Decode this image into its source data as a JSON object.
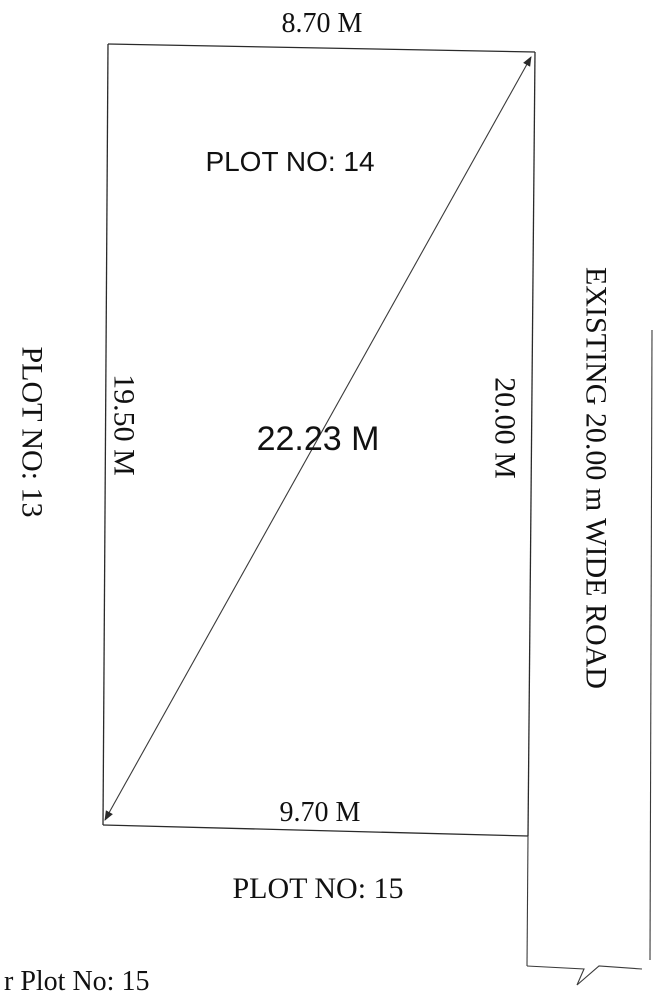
{
  "plan": {
    "top_dimension": "8.70 M",
    "bottom_dimension": "9.70 M",
    "left_dimension": "19.50 M",
    "right_dimension": "20.00 M",
    "diagonal_dimension": "22.23 M",
    "plot_main": "PLOT NO: 14",
    "plot_left": "PLOT NO: 13",
    "plot_bottom": "PLOT NO: 15",
    "road_label": "EXISTING 20.00 m WIDE ROAD",
    "footer_text": "r  Plot No: 15"
  },
  "colors": {
    "ink": "#111111",
    "lines": "#2a2a2a",
    "background": "#ffffff"
  }
}
